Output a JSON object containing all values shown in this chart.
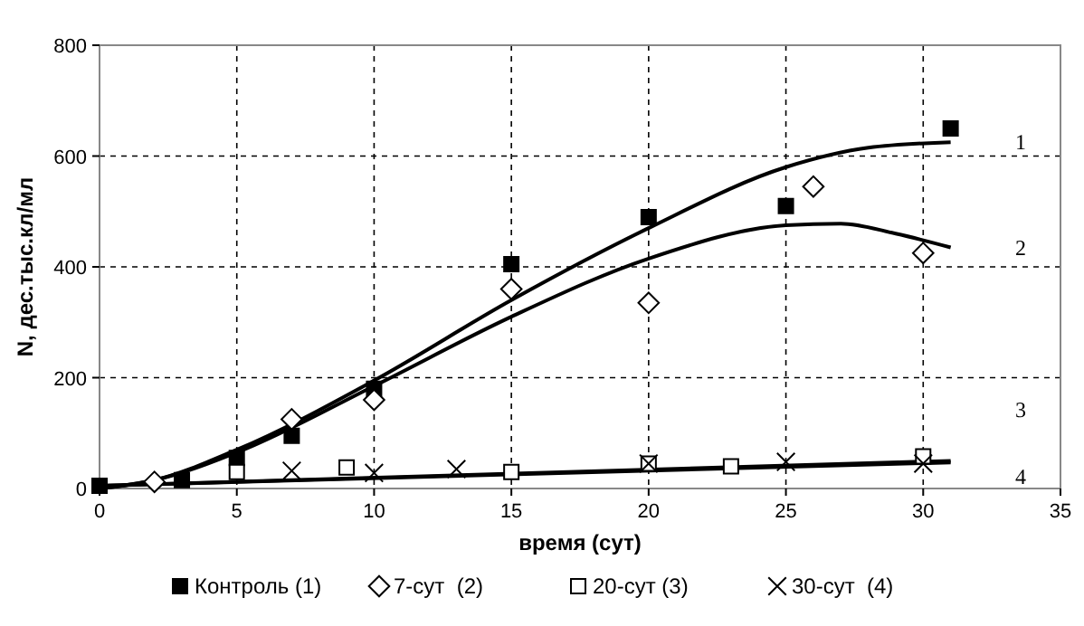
{
  "chart_data": {
    "type": "scatter",
    "xlabel": "время (сут)",
    "ylabel": "N, дес.тыс.кл/мл",
    "xlim": [
      0,
      35
    ],
    "xticks": [
      0,
      5,
      10,
      15,
      20,
      25,
      30,
      35
    ],
    "ylim": [
      0,
      800
    ],
    "yticks": [
      0,
      200,
      400,
      600,
      800
    ],
    "grid": true,
    "legend": "bottom",
    "series": [
      {
        "name": "Контроль (1)",
        "color": "#000000",
        "marker": "square",
        "x": [
          0,
          3,
          5,
          7,
          10,
          15,
          20,
          25,
          31
        ],
        "values": [
          5,
          15,
          55,
          95,
          180,
          405,
          490,
          510,
          650
        ]
      },
      {
        "name": "7-сут  (2)",
        "color": "#ffffff",
        "marker": "diamond",
        "x": [
          2,
          7,
          10,
          15,
          20,
          26,
          30
        ],
        "values": [
          12,
          125,
          160,
          360,
          335,
          545,
          425
        ]
      },
      {
        "name": "20-сут (3)",
        "color": "#ffffff",
        "marker": "square",
        "x": [
          5,
          9,
          15,
          20,
          23,
          30
        ],
        "values": [
          30,
          38,
          30,
          45,
          40,
          58
        ]
      },
      {
        "name": "30-сут  (4)",
        "color": "#000000",
        "marker": "cross",
        "x": [
          7,
          10,
          13,
          20,
          25,
          30
        ],
        "values": [
          32,
          28,
          35,
          45,
          48,
          45
        ]
      },
      {
        "type": "line",
        "color": "#000000",
        "x": [
          0,
          2,
          5,
          10,
          15,
          20,
          25,
          28,
          31
        ],
        "values": [
          0,
          15,
          70,
          195,
          340,
          470,
          580,
          615,
          625
        ]
      },
      {
        "type": "line",
        "color": "#000000",
        "x": [
          0,
          2,
          5,
          10,
          15,
          20,
          25,
          27,
          29,
          31
        ],
        "values": [
          0,
          15,
          65,
          185,
          310,
          415,
          475,
          478,
          460,
          435
        ]
      },
      {
        "type": "line",
        "color": "#000000",
        "x": [
          0,
          31
        ],
        "values": [
          5,
          50
        ]
      },
      {
        "type": "line",
        "color": "#000000",
        "x": [
          0,
          31
        ],
        "values": [
          5,
          47
        ]
      }
    ],
    "annotations": [
      "1",
      "2",
      "3",
      "4"
    ]
  }
}
